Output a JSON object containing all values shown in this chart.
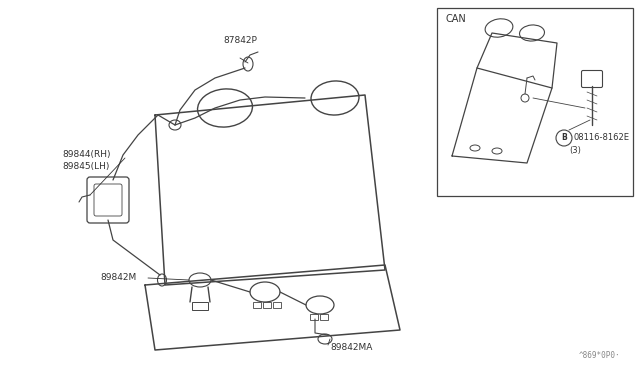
{
  "bg_color": "#ffffff",
  "line_color": "#444444",
  "text_color": "#333333",
  "labels": {
    "87842P": "87842P",
    "89844RH": "89844(RH)",
    "89845LH": "89845(LH)",
    "89842M": "89842M",
    "89842MA": "89842MA",
    "CAN": "CAN",
    "B_label": "08116-8162E",
    "B_sublabel": "(3)",
    "watermark": "^869*0P0·"
  },
  "figsize": [
    6.4,
    3.72
  ],
  "dpi": 100
}
